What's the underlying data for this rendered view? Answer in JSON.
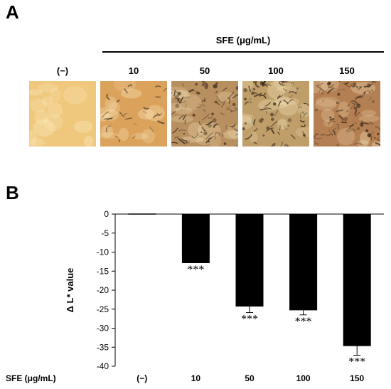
{
  "panel_a": {
    "label": "A",
    "group_title": "SFE (μg/mL)",
    "images": [
      {
        "label": "(−)",
        "base_color": "#efc77d",
        "pigment_density": 0.0
      },
      {
        "label": "10",
        "base_color": "#dba25c",
        "pigment_density": 0.35
      },
      {
        "label": "50",
        "base_color": "#b88f5f",
        "pigment_density": 0.9
      },
      {
        "label": "100",
        "base_color": "#bf9e6a",
        "pigment_density": 0.75
      },
      {
        "label": "150",
        "base_color": "#b47f52",
        "pigment_density": 0.85
      }
    ]
  },
  "panel_b": {
    "label": "B"
  },
  "chart_data": {
    "type": "bar",
    "ylabel": "Δ L* value",
    "xlabel": "SFE (μg/mL)",
    "categories": [
      "(−)",
      "10",
      "50",
      "100",
      "150"
    ],
    "values": [
      0,
      -12.9,
      -24.3,
      -25.3,
      -34.7
    ],
    "errors": [
      0,
      0,
      1.6,
      1.2,
      2.4
    ],
    "annotations": [
      "",
      "***",
      "***",
      "***",
      "***"
    ],
    "ylim": [
      -40,
      0
    ],
    "yticks": [
      0,
      -5,
      -10,
      -15,
      -20,
      -25,
      -30,
      -35,
      -40
    ],
    "bar_color": "#000000",
    "grid": false
  }
}
